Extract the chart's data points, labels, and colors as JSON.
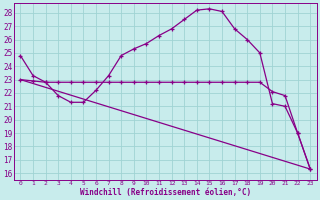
{
  "xlabel": "Windchill (Refroidissement éolien,°C)",
  "bg_color": "#c8ecec",
  "grid_color": "#a0d4d4",
  "line_color": "#880088",
  "xlim": [
    -0.5,
    23.5
  ],
  "ylim": [
    15.5,
    28.7
  ],
  "yticks": [
    16,
    17,
    18,
    19,
    20,
    21,
    22,
    23,
    24,
    25,
    26,
    27,
    28
  ],
  "xticks": [
    0,
    1,
    2,
    3,
    4,
    5,
    6,
    7,
    8,
    9,
    10,
    11,
    12,
    13,
    14,
    15,
    16,
    17,
    18,
    19,
    20,
    21,
    22,
    23
  ],
  "line1_x": [
    0,
    1,
    2,
    3,
    4,
    5,
    6,
    7,
    8,
    9,
    10,
    11,
    12,
    13,
    14,
    15,
    16,
    17,
    18,
    19,
    20,
    21,
    22,
    23
  ],
  "line1_y": [
    24.8,
    23.3,
    22.8,
    21.8,
    21.3,
    21.3,
    22.2,
    23.3,
    24.8,
    25.3,
    25.7,
    26.3,
    26.8,
    27.5,
    28.2,
    28.3,
    28.1,
    26.8,
    26.0,
    25.0,
    21.2,
    21.0,
    19.0,
    16.3
  ],
  "line2_x": [
    0,
    1,
    2,
    3,
    4,
    5,
    6,
    7,
    8,
    9,
    10,
    11,
    12,
    13,
    14,
    15,
    16,
    17,
    18,
    19,
    20,
    21,
    22,
    23
  ],
  "line2_y": [
    23.0,
    22.9,
    22.8,
    22.8,
    22.8,
    22.8,
    22.8,
    22.8,
    22.8,
    22.8,
    22.8,
    22.8,
    22.8,
    22.8,
    22.8,
    22.8,
    22.8,
    22.8,
    22.8,
    22.8,
    22.1,
    21.8,
    19.0,
    16.3
  ],
  "line3_x": [
    0,
    23
  ],
  "line3_y": [
    23.0,
    16.3
  ]
}
